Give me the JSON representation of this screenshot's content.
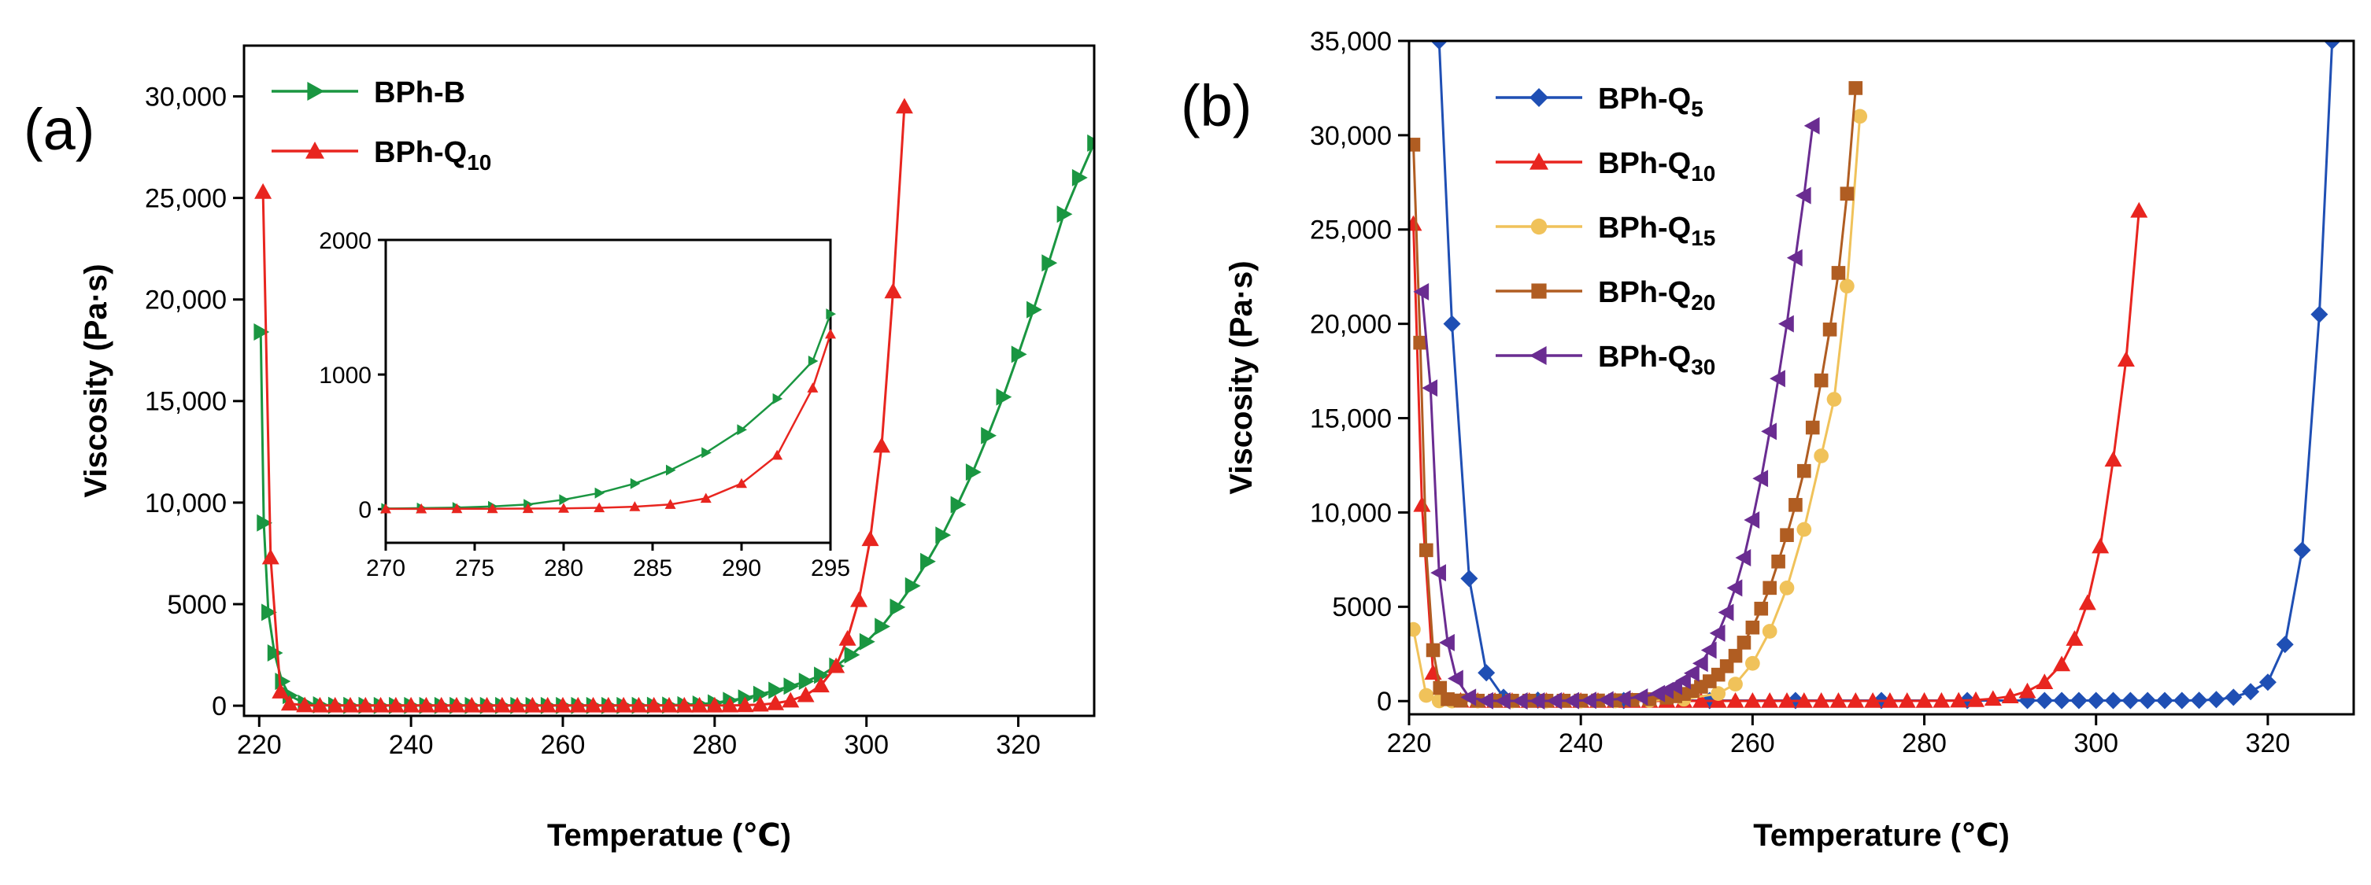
{
  "chart_data": [
    {
      "type": "line",
      "panel_label": "(a)",
      "xlabel": "Temperatue (℃)",
      "ylabel": "Viscosity (Pa·s)",
      "xlim": [
        218,
        330
      ],
      "ylim": [
        -500,
        32500
      ],
      "x_ticks": [
        220,
        240,
        260,
        280,
        300,
        320
      ],
      "x_tick_labels": [
        "220",
        "240",
        "260",
        "280",
        "300",
        "320"
      ],
      "y_ticks": [
        0,
        5000,
        10000,
        15000,
        20000,
        25000,
        30000
      ],
      "y_tick_labels": [
        "0",
        "5000",
        "10,000",
        "15,000",
        "20,000",
        "25,000",
        "30,000"
      ],
      "legend_position": "top-left",
      "series": [
        {
          "name": "BPh-B",
          "sub": "",
          "color": "#1a9641",
          "marker": "triangle-right",
          "x": [
            220.2,
            220.6,
            221.2,
            222,
            223,
            224,
            226,
            228,
            230,
            232,
            234,
            236,
            238,
            240,
            242,
            244,
            246,
            248,
            250,
            252,
            254,
            256,
            258,
            260,
            262,
            264,
            266,
            268,
            270,
            272,
            274,
            276,
            278,
            280,
            282,
            284,
            286,
            288,
            290,
            292,
            294,
            296,
            298,
            300,
            302,
            304,
            306,
            308,
            310,
            312,
            314,
            316,
            318,
            320,
            322,
            324,
            326,
            328,
            330
          ],
          "y": [
            18400,
            9000,
            4600,
            2600,
            1200,
            500,
            120,
            40,
            20,
            15,
            12,
            10,
            10,
            10,
            10,
            10,
            10,
            10,
            10,
            10,
            10,
            10,
            10,
            10,
            10,
            10,
            10,
            10,
            12,
            16,
            26,
            45,
            80,
            140,
            260,
            380,
            560,
            760,
            960,
            1200,
            1500,
            1950,
            2500,
            3150,
            3900,
            4850,
            5900,
            7100,
            8400,
            9900,
            11500,
            13300,
            15200,
            17300,
            19500,
            21800,
            24200,
            26000,
            27700
          ]
        },
        {
          "name": "BPh-Q",
          "sub": "10",
          "color": "#e8251f",
          "marker": "triangle-up",
          "x": [
            220.5,
            221.5,
            222.8,
            224,
            226,
            228,
            230,
            232,
            234,
            236,
            238,
            240,
            242,
            244,
            246,
            248,
            250,
            252,
            254,
            256,
            258,
            260,
            262,
            264,
            266,
            268,
            270,
            272,
            274,
            276,
            278,
            280,
            282,
            284,
            286,
            288,
            290,
            292,
            294,
            296,
            297.5,
            299,
            300.5,
            302,
            303.5,
            305
          ],
          "y": [
            25300,
            7300,
            700,
            100,
            20,
            10,
            10,
            10,
            10,
            10,
            10,
            10,
            10,
            10,
            10,
            10,
            10,
            10,
            10,
            10,
            10,
            10,
            10,
            10,
            10,
            10,
            10,
            10,
            10,
            10,
            10,
            12,
            15,
            25,
            55,
            120,
            250,
            520,
            1000,
            1950,
            3300,
            5200,
            8200,
            12800,
            20400,
            29500
          ]
        }
      ],
      "inset": {
        "xlim": [
          270,
          295
        ],
        "ylim": [
          -250,
          2000
        ],
        "x_ticks": [
          270,
          275,
          280,
          285,
          290,
          295
        ],
        "x_tick_labels": [
          "270",
          "275",
          "280",
          "285",
          "290",
          "295"
        ],
        "y_ticks": [
          0,
          1000,
          2000
        ],
        "y_tick_labels": [
          "0",
          "1000",
          "2000"
        ],
        "series": [
          {
            "name": "BPh-B",
            "color": "#1a9641",
            "marker": "triangle-right",
            "x": [
              270,
              272,
              274,
              276,
              278,
              280,
              282,
              284,
              286,
              288,
              290,
              292,
              294,
              295
            ],
            "y": [
              5,
              8,
              12,
              20,
              35,
              70,
              120,
              190,
              290,
              420,
              590,
              820,
              1100,
              1450
            ]
          },
          {
            "name": "BPh-Q10",
            "color": "#e8251f",
            "marker": "triangle-up",
            "x": [
              270,
              272,
              274,
              276,
              278,
              280,
              282,
              284,
              286,
              288,
              290,
              292,
              294,
              295
            ],
            "y": [
              2,
              2,
              3,
              3,
              4,
              6,
              10,
              18,
              35,
              80,
              190,
              400,
              900,
              1300
            ]
          }
        ]
      }
    },
    {
      "type": "line",
      "panel_label": "(b)",
      "xlabel": "Temperature (℃)",
      "ylabel": "Viscosity (Pa·s)",
      "xlim": [
        220,
        330
      ],
      "ylim": [
        -700,
        35000
      ],
      "x_ticks": [
        220,
        240,
        260,
        280,
        300,
        320
      ],
      "x_tick_labels": [
        "220",
        "240",
        "260",
        "280",
        "300",
        "320"
      ],
      "y_ticks": [
        0,
        5000,
        10000,
        15000,
        20000,
        25000,
        30000,
        35000
      ],
      "y_tick_labels": [
        "0",
        "5000",
        "10,000",
        "15,000",
        "20,000",
        "25,000",
        "30,000",
        "35,000"
      ],
      "legend_position": "top-left",
      "series": [
        {
          "name": "BPh-Q",
          "sub": "5",
          "color": "#1f4fb4",
          "marker": "diamond",
          "x": [
            223.5,
            225,
            227,
            229,
            231,
            235,
            245,
            255,
            265,
            275,
            285,
            292,
            294,
            296,
            298,
            300,
            302,
            304,
            306,
            308,
            310,
            312,
            314,
            316,
            318,
            320,
            322,
            324,
            326,
            327.5
          ],
          "y": [
            35000,
            20000,
            6500,
            1500,
            200,
            50,
            30,
            30,
            30,
            30,
            30,
            30,
            30,
            30,
            30,
            30,
            30,
            30,
            30,
            30,
            30,
            40,
            80,
            200,
            500,
            1000,
            3000,
            8000,
            20500,
            35000
          ]
        },
        {
          "name": "BPh-Q",
          "sub": "10",
          "color": "#e8251f",
          "marker": "triangle-up",
          "x": [
            220.5,
            221.5,
            222.8,
            224,
            226,
            228,
            230,
            232,
            234,
            236,
            238,
            240,
            242,
            244,
            246,
            248,
            250,
            252,
            254,
            256,
            258,
            260,
            262,
            264,
            266,
            268,
            270,
            272,
            274,
            276,
            278,
            280,
            282,
            284,
            286,
            288,
            290,
            292,
            294,
            296,
            297.5,
            299,
            300.5,
            302,
            303.5,
            305
          ],
          "y": [
            25300,
            10400,
            1500,
            200,
            20,
            10,
            10,
            10,
            10,
            10,
            10,
            10,
            10,
            10,
            10,
            10,
            10,
            10,
            10,
            10,
            10,
            10,
            10,
            10,
            10,
            10,
            10,
            10,
            10,
            10,
            10,
            12,
            15,
            25,
            55,
            120,
            250,
            520,
            1000,
            1950,
            3300,
            5200,
            8200,
            12800,
            18100,
            26000
          ]
        },
        {
          "name": "BPh-Q",
          "sub": "15",
          "color": "#f0c25a",
          "marker": "circle",
          "x": [
            220.5,
            222,
            223.5,
            225,
            228,
            232,
            236,
            240,
            244,
            248,
            252,
            256,
            258,
            260,
            262,
            264,
            266,
            268,
            269.5,
            271,
            272.5
          ],
          "y": [
            3800,
            300,
            10,
            5,
            5,
            5,
            5,
            5,
            10,
            30,
            100,
            400,
            900,
            2000,
            3700,
            6000,
            9100,
            13000,
            16000,
            22000,
            31000
          ]
        },
        {
          "name": "BPh-Q",
          "sub": "20",
          "color": "#b05d22",
          "marker": "square",
          "x": [
            220.5,
            221.3,
            222,
            222.8,
            223.6,
            224.5,
            226,
            228,
            230,
            232,
            234,
            236,
            238,
            240,
            242,
            244,
            246,
            248,
            250,
            251,
            252,
            253,
            254,
            255,
            256,
            257,
            258,
            259,
            260,
            261,
            262,
            263,
            264,
            265,
            266,
            267,
            268,
            269,
            270,
            271,
            272
          ],
          "y": [
            29500,
            19000,
            8000,
            2700,
            700,
            100,
            30,
            20,
            20,
            20,
            20,
            20,
            20,
            25,
            30,
            40,
            60,
            100,
            180,
            260,
            380,
            540,
            760,
            1050,
            1400,
            1850,
            2400,
            3100,
            3900,
            4900,
            6000,
            7400,
            8800,
            10400,
            12200,
            14500,
            17000,
            19700,
            22700,
            26900,
            32500
          ]
        },
        {
          "name": "BPh-Q",
          "sub": "30",
          "color": "#6a2c91",
          "marker": "triangle-left",
          "x": [
            221.5,
            222.5,
            223.5,
            224.5,
            225.5,
            227,
            229,
            231,
            233,
            235,
            237,
            239,
            241,
            243,
            245,
            247,
            249,
            250,
            251,
            252,
            253,
            254,
            255,
            256,
            257,
            258,
            259,
            260,
            261,
            262,
            263,
            264,
            265,
            266,
            267
          ],
          "y": [
            21700,
            16600,
            6800,
            3100,
            1200,
            200,
            20,
            10,
            10,
            10,
            15,
            25,
            40,
            70,
            120,
            220,
            400,
            560,
            780,
            1080,
            1480,
            2000,
            2700,
            3600,
            4700,
            6000,
            7600,
            9600,
            11800,
            14300,
            17100,
            20000,
            23500,
            26800,
            30500
          ]
        }
      ]
    }
  ]
}
